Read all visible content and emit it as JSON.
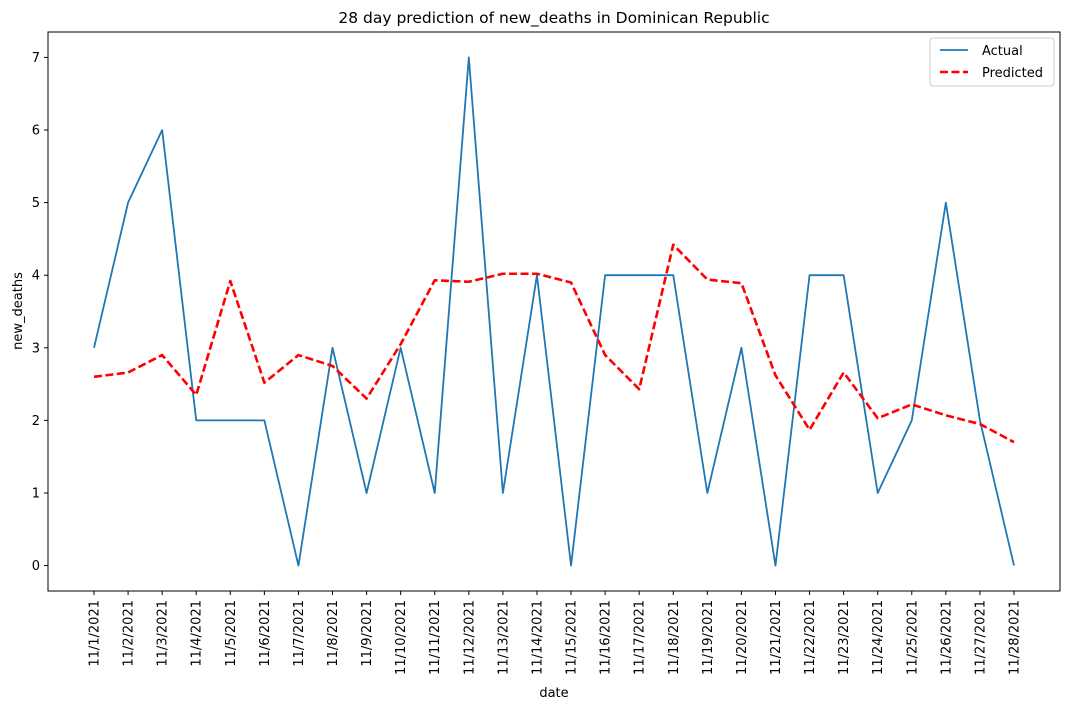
{
  "chart_data": {
    "type": "line",
    "title": "28 day prediction of new_deaths in Dominican Republic",
    "xlabel": "date",
    "ylabel": "new_deaths",
    "categories": [
      "11/1/2021",
      "11/2/2021",
      "11/3/2021",
      "11/4/2021",
      "11/5/2021",
      "11/6/2021",
      "11/7/2021",
      "11/8/2021",
      "11/9/2021",
      "11/10/2021",
      "11/11/2021",
      "11/12/2021",
      "11/13/2021",
      "11/14/2021",
      "11/15/2021",
      "11/16/2021",
      "11/17/2021",
      "11/18/2021",
      "11/19/2021",
      "11/20/2021",
      "11/21/2021",
      "11/22/2021",
      "11/23/2021",
      "11/24/2021",
      "11/25/2021",
      "11/26/2021",
      "11/27/2021",
      "11/28/2021"
    ],
    "yticks": [
      "0",
      "1",
      "2",
      "3",
      "4",
      "5",
      "6",
      "7"
    ],
    "ylim": [
      -0.35,
      7.35
    ],
    "grid": false,
    "legend_position": "top-right",
    "series": [
      {
        "name": "Actual",
        "color": "#1f77b4",
        "style": "solid",
        "values": [
          3,
          5,
          6,
          2,
          2,
          2,
          0,
          3,
          1,
          3,
          1,
          7,
          1,
          4,
          0,
          4,
          4,
          4,
          1,
          3,
          0,
          4,
          4,
          1,
          2,
          5,
          2,
          0
        ]
      },
      {
        "name": "Predicted",
        "color": "#ff0000",
        "style": "dashed",
        "values": [
          2.6,
          2.66,
          2.9,
          2.35,
          3.92,
          2.52,
          2.9,
          2.75,
          2.3,
          3.05,
          3.93,
          3.91,
          4.02,
          4.02,
          3.9,
          2.9,
          2.43,
          4.42,
          3.94,
          3.89,
          2.62,
          1.87,
          2.66,
          2.03,
          2.22,
          2.07,
          1.95,
          1.7
        ]
      }
    ]
  }
}
